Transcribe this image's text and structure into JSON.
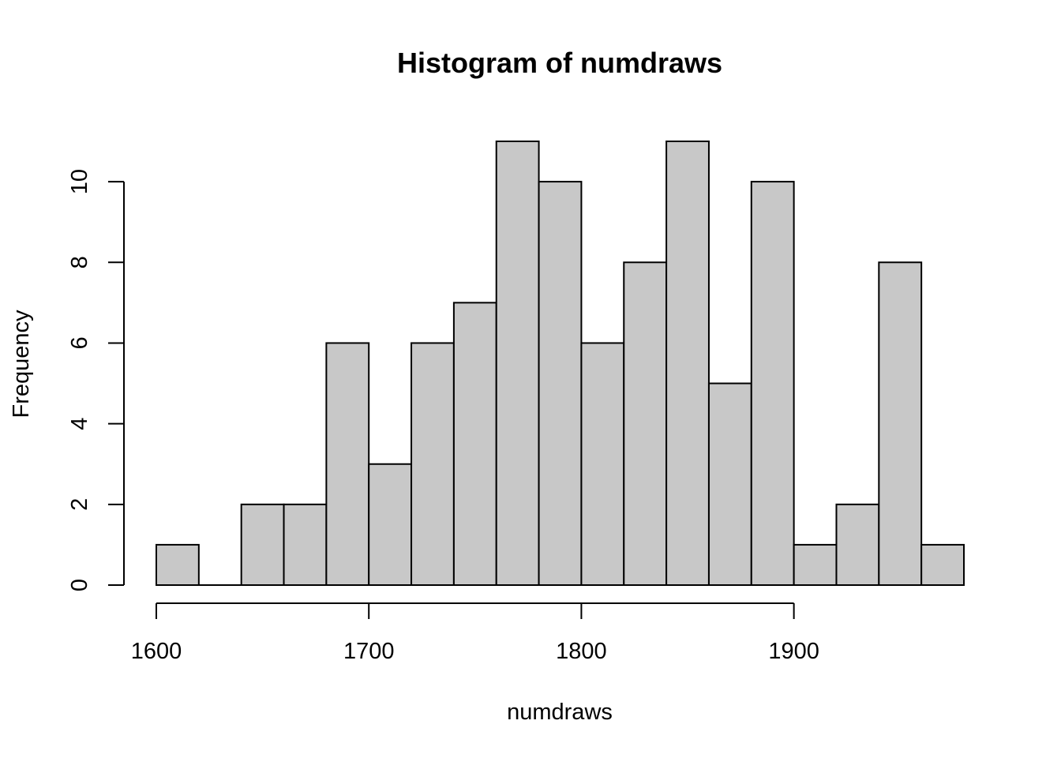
{
  "chart_data": {
    "type": "bar",
    "subtype": "histogram",
    "title": "Histogram of numdraws",
    "xlabel": "numdraws",
    "ylabel": "Frequency",
    "bin_width": 20,
    "bin_edges": [
      1600,
      1620,
      1640,
      1660,
      1680,
      1700,
      1720,
      1740,
      1760,
      1780,
      1800,
      1820,
      1840,
      1860,
      1880,
      1900,
      1920,
      1940,
      1960,
      1980
    ],
    "values": [
      1,
      0,
      2,
      2,
      6,
      3,
      6,
      7,
      11,
      10,
      6,
      8,
      11,
      5,
      10,
      1,
      2,
      8,
      1
    ],
    "xlim": [
      1600,
      1980
    ],
    "ylim": [
      0,
      11
    ],
    "xticks": [
      1600,
      1700,
      1800,
      1900
    ],
    "xtick_labels": [
      "1600",
      "1700",
      "1800",
      "1900"
    ],
    "yticks": [
      0,
      2,
      4,
      6,
      8,
      10
    ],
    "ytick_labels": [
      "0",
      "2",
      "4",
      "6",
      "8",
      "10"
    ],
    "grid": false,
    "bar_fill": "#c8c8c8",
    "bar_stroke": "#000000"
  }
}
